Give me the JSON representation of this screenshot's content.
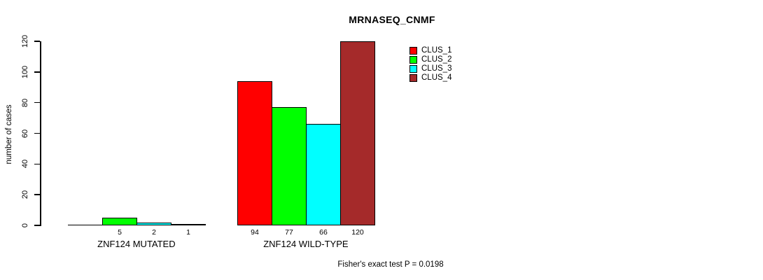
{
  "chart_data": {
    "type": "bar",
    "title": "MRNASEQ_CNMF",
    "ylabel": "number of cases",
    "xlabel": "",
    "ylim": [
      0,
      120
    ],
    "yticks": [
      0,
      20,
      40,
      60,
      80,
      100,
      120
    ],
    "grid": false,
    "categories": [
      "ZNF124 MUTATED",
      "ZNF124 WILD-TYPE"
    ],
    "series": [
      {
        "name": "CLUS_1",
        "color": "#FF0000",
        "values": [
          0,
          94
        ]
      },
      {
        "name": "CLUS_2",
        "color": "#00FF00",
        "values": [
          5,
          77
        ]
      },
      {
        "name": "CLUS_3",
        "color": "#00FFFF",
        "values": [
          2,
          66
        ]
      },
      {
        "name": "CLUS_4",
        "color": "#A52A2A",
        "values": [
          1,
          120
        ]
      }
    ],
    "bar_value_labels": [
      [
        "",
        "5",
        "2",
        "1"
      ],
      [
        "94",
        "77",
        "66",
        "120"
      ]
    ],
    "legend": {
      "position": "top-right",
      "entries": [
        "CLUS_1",
        "CLUS_2",
        "CLUS_3",
        "CLUS_4"
      ]
    },
    "footnote": "Fisher's exact test P = 0.0198",
    "colors": {
      "background": "#FFFFFF",
      "axis": "#000000",
      "text": "#000000"
    }
  }
}
